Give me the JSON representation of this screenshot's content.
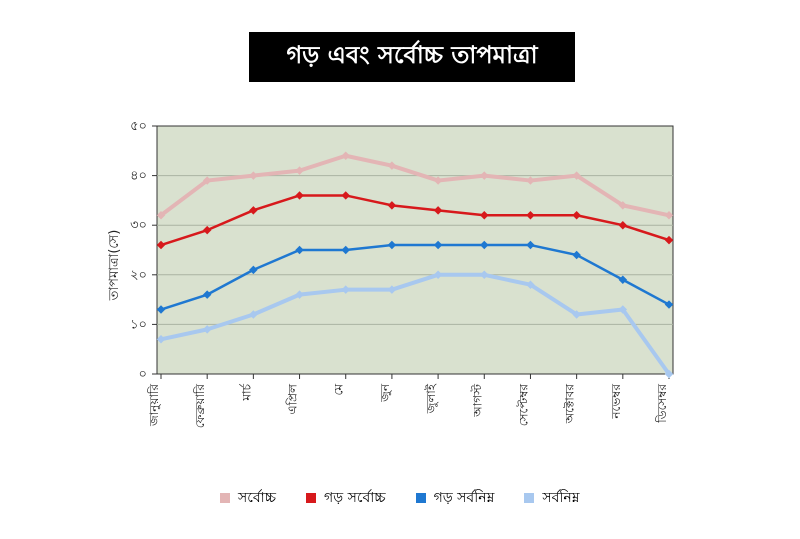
{
  "title": "গড় এবং সর্বোচ্চ তাপমাত্রা",
  "colors": {
    "plot_bg": "#d9e1cf",
    "grid": "#aab3a2",
    "max": "#e3b5b5",
    "avg_max": "#d7191c",
    "avg_min": "#1f78d1",
    "min": "#a8c8ef"
  },
  "chart_data": {
    "type": "line",
    "title": "গড় এবং সর্বোচ্চ তাপমাত্রা",
    "xlabel": "",
    "ylabel": "তাপমাত্রা(সে)",
    "ylim": [
      0,
      50
    ],
    "yticks": [
      "০",
      "১০",
      "২০",
      "৩০",
      "৪০",
      "৫০"
    ],
    "ytick_values": [
      0,
      10,
      20,
      30,
      40,
      50
    ],
    "grid": true,
    "legend_position": "bottom",
    "categories": [
      "জানুয়ারি",
      "ফেব্রুয়ারি",
      "মার্চ",
      "এপ্রিল",
      "মে",
      "জুন",
      "জুলাই",
      "আগস্ট",
      "সেপ্টেম্বর",
      "অক্টোবর",
      "নভেম্বর",
      "ডিসেম্বর"
    ],
    "series": [
      {
        "name": "সর্বোচ্চ",
        "color": "#e3b5b5",
        "values": [
          32,
          39,
          40,
          41,
          44,
          42,
          39,
          40,
          39,
          40,
          34,
          32
        ]
      },
      {
        "name": "গড় সর্বোচ্চ",
        "color": "#d7191c",
        "values": [
          26,
          29,
          33,
          36,
          36,
          34,
          33,
          32,
          32,
          32,
          30,
          27
        ]
      },
      {
        "name": "গড় সর্বনিম্ন",
        "color": "#1f78d1",
        "values": [
          13,
          16,
          21,
          25,
          25,
          26,
          26,
          26,
          26,
          24,
          19,
          14
        ]
      },
      {
        "name": "সর্বনিম্ন",
        "color": "#a8c8ef",
        "values": [
          7,
          9,
          12,
          16,
          17,
          17,
          20,
          20,
          18,
          12,
          13,
          0
        ]
      }
    ]
  }
}
